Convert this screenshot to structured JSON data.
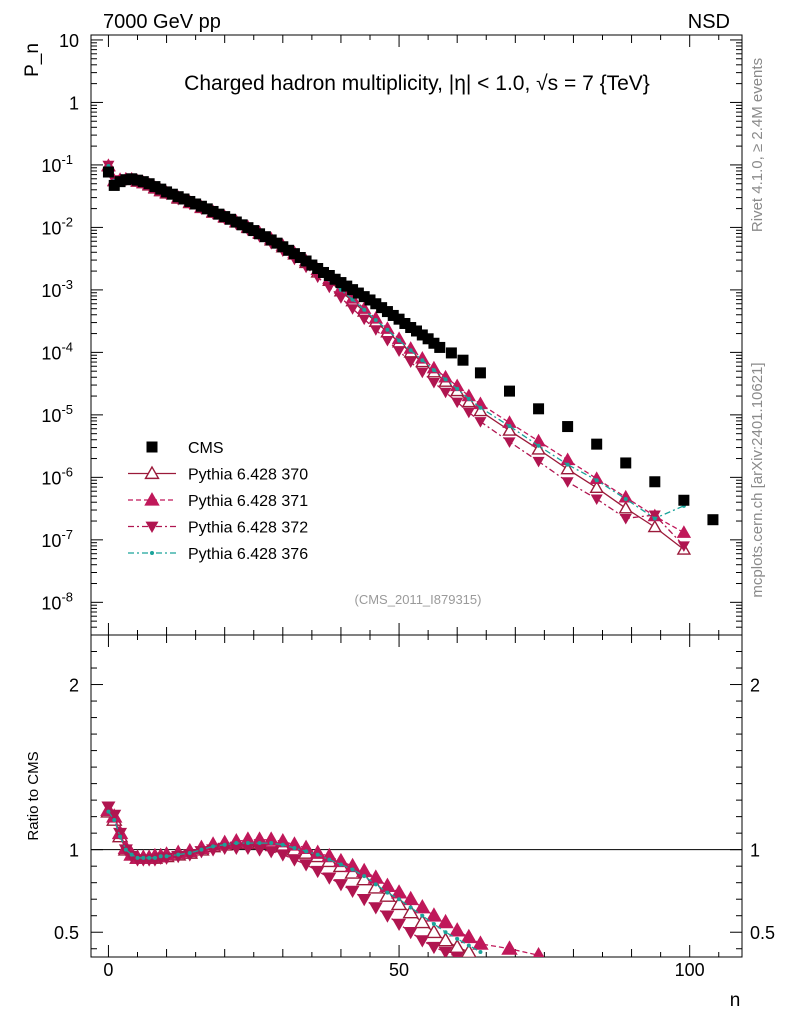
{
  "header": {
    "left": "7000 GeV pp",
    "right": "NSD"
  },
  "side_labels": {
    "rivet": "Rivet 4.1.0, ≥ 2.4M events",
    "mcplots": "mcplots.cern.ch [arXiv:2401.10621]"
  },
  "colors": {
    "cms": "#000000",
    "p370": "#9b1a3a",
    "p371": "#c0185a",
    "p372": "#b01550",
    "p376": "#1aa39a"
  },
  "chart_data": {
    "type": "scatter",
    "title": "Charged hadron multiplicity, |η| < 1.0, √s = 7 {TeV}",
    "analysis_tag": "(CMS_2011_I879315)",
    "xlabel": "n",
    "ylabel": "P_n",
    "ratio_ylabel": "Ratio to CMS",
    "xlim": [
      -3,
      109
    ],
    "ylim": [
      3e-09,
      12
    ],
    "ratio_ylim": [
      0.35,
      2.3
    ],
    "x_ticks": [
      0,
      50,
      100
    ],
    "y_ticks": [
      "10^-8",
      "10^-7",
      "10^-6",
      "10^-5",
      "10^-4",
      "10^-3",
      "10^-2",
      "10^-1",
      "1",
      "10"
    ],
    "ratio_ticks": [
      0.5,
      1,
      2
    ],
    "legend": [
      "CMS",
      "Pythia 6.428 370",
      "Pythia 6.428 371",
      "Pythia 6.428 372",
      "Pythia 6.428 376"
    ],
    "cms": {
      "name": "CMS",
      "x": [
        0,
        1,
        2,
        3,
        4,
        5,
        6,
        7,
        8,
        9,
        10,
        11,
        12,
        13,
        14,
        15,
        16,
        17,
        18,
        19,
        20,
        21,
        22,
        23,
        24,
        25,
        26,
        27,
        28,
        29,
        30,
        31,
        32,
        33,
        34,
        35,
        36,
        37,
        38,
        39,
        40,
        41,
        42,
        43,
        44,
        45,
        46,
        47,
        48,
        49,
        50,
        51,
        52,
        53,
        54,
        55,
        56,
        57,
        59,
        61,
        64,
        69,
        74,
        79,
        84,
        89,
        94,
        99,
        104
      ],
      "y": [
        0.077,
        0.047,
        0.054,
        0.058,
        0.06,
        0.057,
        0.054,
        0.05,
        0.045,
        0.041,
        0.037,
        0.034,
        0.031,
        0.0285,
        0.026,
        0.0237,
        0.0218,
        0.0198,
        0.018,
        0.0163,
        0.0149,
        0.0135,
        0.0122,
        0.011,
        0.0099,
        0.0089,
        0.0079,
        0.0071,
        0.0063,
        0.0056,
        0.0049,
        0.0043,
        0.0038,
        0.0033,
        0.0029,
        0.0025,
        0.0022,
        0.0019,
        0.0017,
        0.00148,
        0.00131,
        0.00115,
        0.00101,
        0.00089,
        0.00078,
        0.00069,
        0.0006,
        0.00052,
        0.00045,
        0.00039,
        0.00034,
        0.00029,
        0.00025,
        0.00022,
        0.00019,
        0.000165,
        0.00014,
        0.00012,
        9.8e-05,
        7.5e-05,
        4.7e-05,
        2.4e-05,
        1.25e-05,
        6.5e-06,
        3.4e-06,
        1.7e-06,
        8.5e-07,
        4.3e-07,
        2.1e-07
      ]
    },
    "series": [
      {
        "name": "Pythia 6.428 370",
        "marker": "triangle-up-open",
        "dash": "",
        "x": [
          0,
          1,
          2,
          3,
          4,
          5,
          6,
          7,
          8,
          9,
          10,
          12,
          14,
          16,
          18,
          20,
          22,
          24,
          26,
          28,
          30,
          32,
          34,
          36,
          38,
          40,
          42,
          44,
          46,
          48,
          50,
          52,
          54,
          56,
          58,
          60,
          62,
          64,
          69,
          74,
          79,
          84,
          89,
          94,
          99
        ],
        "y": [
          0.095,
          0.055,
          0.057,
          0.058,
          0.058,
          0.054,
          0.051,
          0.047,
          0.042,
          0.038,
          0.035,
          0.029,
          0.0245,
          0.0205,
          0.0172,
          0.0144,
          0.012,
          0.0098,
          0.0079,
          0.0062,
          0.0048,
          0.0037,
          0.0027,
          0.0019,
          0.0014,
          0.00095,
          0.00066,
          0.00045,
          0.00031,
          0.00021,
          0.000145,
          0.0001,
          7e-05,
          4.8e-05,
          3.4e-05,
          2.4e-05,
          1.6e-05,
          1.15e-05,
          5.6e-06,
          2.8e-06,
          1.35e-06,
          6.8e-07,
          3.2e-07,
          1.6e-07,
          7e-08
        ],
        "ratio": [
          1.23,
          1.18,
          1.08,
          1.0,
          0.97,
          0.95,
          0.95,
          0.95,
          0.95,
          0.96,
          0.96,
          0.97,
          0.98,
          1.0,
          1.02,
          1.03,
          1.04,
          1.04,
          1.04,
          1.04,
          1.02,
          1.0,
          0.98,
          0.96,
          0.93,
          0.9,
          0.86,
          0.82,
          0.77,
          0.72,
          0.67,
          0.62,
          0.56,
          0.5,
          0.45,
          0.41,
          0.38
        ]
      },
      {
        "name": "Pythia 6.428 371",
        "marker": "triangle-up",
        "dash": "5,3",
        "x": [
          0,
          1,
          2,
          3,
          4,
          5,
          6,
          7,
          8,
          9,
          10,
          12,
          14,
          16,
          18,
          20,
          22,
          24,
          26,
          28,
          30,
          32,
          34,
          36,
          38,
          40,
          42,
          44,
          46,
          48,
          50,
          52,
          54,
          56,
          58,
          60,
          62,
          64,
          69,
          74,
          79,
          84,
          89,
          94,
          99
        ],
        "y": [
          0.097,
          0.056,
          0.058,
          0.059,
          0.059,
          0.055,
          0.052,
          0.048,
          0.043,
          0.039,
          0.036,
          0.03,
          0.0252,
          0.021,
          0.0177,
          0.0148,
          0.0124,
          0.0101,
          0.0082,
          0.0065,
          0.0051,
          0.0039,
          0.0029,
          0.0021,
          0.0015,
          0.00105,
          0.00073,
          0.0005,
          0.00035,
          0.00024,
          0.000165,
          0.000115,
          8e-05,
          5.6e-05,
          4e-05,
          2.9e-05,
          2e-05,
          1.5e-05,
          7.5e-06,
          3.8e-06,
          1.9e-06,
          9.5e-07,
          4.8e-07,
          2.4e-07,
          1.3e-07
        ],
        "ratio": [
          1.24,
          1.2,
          1.1,
          1.01,
          0.97,
          0.95,
          0.95,
          0.95,
          0.96,
          0.96,
          0.97,
          0.98,
          0.99,
          1.01,
          1.03,
          1.04,
          1.05,
          1.06,
          1.06,
          1.06,
          1.05,
          1.03,
          1.01,
          0.98,
          0.96,
          0.93,
          0.9,
          0.87,
          0.83,
          0.78,
          0.74,
          0.7,
          0.65,
          0.6,
          0.56,
          0.51,
          0.47,
          0.43,
          0.4,
          0.36
        ]
      },
      {
        "name": "Pythia 6.428 372",
        "marker": "triangle-down",
        "dash": "6,3,2,3",
        "x": [
          0,
          1,
          2,
          3,
          4,
          5,
          6,
          7,
          8,
          9,
          10,
          12,
          14,
          16,
          18,
          20,
          22,
          24,
          26,
          28,
          30,
          32,
          34,
          36,
          38,
          40,
          42,
          44,
          46,
          48,
          50,
          52,
          54,
          56,
          58,
          60,
          62,
          64,
          69,
          74,
          79,
          84,
          89,
          94,
          99
        ],
        "y": [
          0.099,
          0.057,
          0.058,
          0.058,
          0.057,
          0.054,
          0.05,
          0.046,
          0.041,
          0.037,
          0.034,
          0.028,
          0.0235,
          0.0197,
          0.0164,
          0.0136,
          0.0112,
          0.009,
          0.0071,
          0.0055,
          0.0042,
          0.0031,
          0.0023,
          0.0016,
          0.0011,
          0.00075,
          0.0005,
          0.00034,
          0.00023,
          0.000155,
          0.000105,
          7e-05,
          4.8e-05,
          3.3e-05,
          2.3e-05,
          1.6e-05,
          1.1e-05,
          7.8e-06,
          3.7e-06,
          1.8e-06,
          8.5e-07,
          4.5e-07,
          2.2e-07,
          2.5e-07,
          8e-08
        ],
        "ratio": [
          1.26,
          1.21,
          1.1,
          1.0,
          0.96,
          0.94,
          0.94,
          0.94,
          0.94,
          0.95,
          0.95,
          0.96,
          0.97,
          0.99,
          1.0,
          1.01,
          1.01,
          1.01,
          1.0,
          0.99,
          0.97,
          0.94,
          0.91,
          0.87,
          0.83,
          0.79,
          0.75,
          0.7,
          0.65,
          0.6,
          0.55,
          0.5,
          0.45,
          0.41,
          0.38,
          0.35
        ]
      },
      {
        "name": "Pythia 6.428 376",
        "marker": "dot",
        "dash": "6,3,2,3",
        "x": [
          0,
          1,
          2,
          3,
          4,
          5,
          6,
          7,
          8,
          9,
          10,
          12,
          14,
          16,
          18,
          20,
          22,
          24,
          26,
          28,
          30,
          32,
          34,
          36,
          38,
          40,
          42,
          44,
          46,
          48,
          50,
          52,
          54,
          56,
          58,
          60,
          62,
          64,
          69,
          74,
          79,
          84,
          89,
          94,
          99
        ],
        "y": [
          0.096,
          0.055,
          0.057,
          0.058,
          0.058,
          0.055,
          0.051,
          0.047,
          0.043,
          0.039,
          0.035,
          0.0295,
          0.0248,
          0.0208,
          0.0175,
          0.0146,
          0.0122,
          0.01,
          0.0081,
          0.0064,
          0.005,
          0.0038,
          0.0028,
          0.002,
          0.00145,
          0.001,
          0.0007,
          0.00048,
          0.00033,
          0.00023,
          0.000155,
          0.000108,
          7.5e-05,
          5.2e-05,
          3.7e-05,
          2.6e-05,
          1.8e-05,
          1.3e-05,
          6.6e-06,
          3.2e-06,
          1.6e-06,
          9e-07,
          4.5e-07,
          2.2e-07,
          3.5e-07
        ],
        "ratio": [
          1.23,
          1.18,
          1.08,
          1.0,
          0.97,
          0.95,
          0.95,
          0.95,
          0.95,
          0.96,
          0.96,
          0.97,
          0.98,
          1.0,
          1.02,
          1.03,
          1.04,
          1.04,
          1.04,
          1.04,
          1.03,
          1.01,
          0.99,
          0.97,
          0.94,
          0.91,
          0.88,
          0.84,
          0.79,
          0.74,
          0.7,
          0.65,
          0.6,
          0.55,
          0.5,
          0.46,
          0.42,
          0.38
        ]
      }
    ]
  }
}
